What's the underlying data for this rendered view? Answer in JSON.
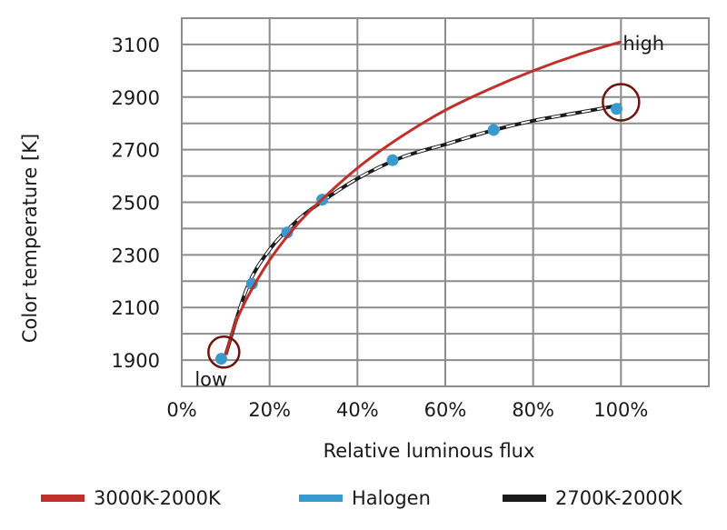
{
  "chart_data": {
    "type": "line",
    "xlabel": "Relative luminous flux",
    "ylabel": "Color temperature [K]",
    "xlim": [
      0,
      120
    ],
    "ylim": [
      1800,
      3200
    ],
    "x_ticks": [
      0,
      20,
      40,
      60,
      80,
      100
    ],
    "x_tick_labels": [
      "0%",
      "20%",
      "40%",
      "60%",
      "80%",
      "100%"
    ],
    "y_ticks": [
      1900,
      2100,
      2300,
      2500,
      2700,
      2900,
      3100
    ],
    "y_tick_labels": [
      "1900",
      "2100",
      "2300",
      "2500",
      "2700",
      "2900",
      "3100"
    ],
    "grid": true,
    "series": [
      {
        "name": "3000K-2000K",
        "style": "solid-line",
        "color": "#c0302a",
        "x": [
          10,
          12,
          15,
          20,
          25,
          30,
          40,
          50,
          60,
          70,
          80,
          90,
          100
        ],
        "y": [
          1920,
          2030,
          2140,
          2280,
          2390,
          2480,
          2630,
          2750,
          2850,
          2930,
          3000,
          3060,
          3110
        ]
      },
      {
        "name": "Halogen",
        "style": "markers",
        "color": "#3a9ad0",
        "x": [
          9,
          16,
          24,
          32,
          48,
          71,
          99
        ],
        "y": [
          1905,
          2190,
          2385,
          2510,
          2660,
          2775,
          2855
        ]
      },
      {
        "name": "2700K-2000K",
        "style": "dashed-line",
        "color": "#1a1a1a",
        "x": [
          10,
          15,
          20,
          25,
          30,
          40,
          50,
          60,
          70,
          80,
          90,
          100
        ],
        "y": [
          1920,
          2180,
          2320,
          2410,
          2480,
          2590,
          2670,
          2720,
          2770,
          2810,
          2840,
          2870
        ]
      }
    ],
    "annotations": [
      {
        "text": "low",
        "x": 10,
        "y": 1920
      },
      {
        "text": "high",
        "x": 100,
        "y": 2870
      }
    ],
    "legend_position": "bottom"
  },
  "legend": {
    "items": [
      {
        "label": "3000K-2000K",
        "color": "#c0302a"
      },
      {
        "label": "Halogen",
        "color": "#3a9ad0"
      },
      {
        "label": "2700K-2000K",
        "color": "#1a1a1a"
      }
    ]
  },
  "colors": {
    "grid": "#8c8c8c",
    "highlight_circle": "#6b1410"
  }
}
